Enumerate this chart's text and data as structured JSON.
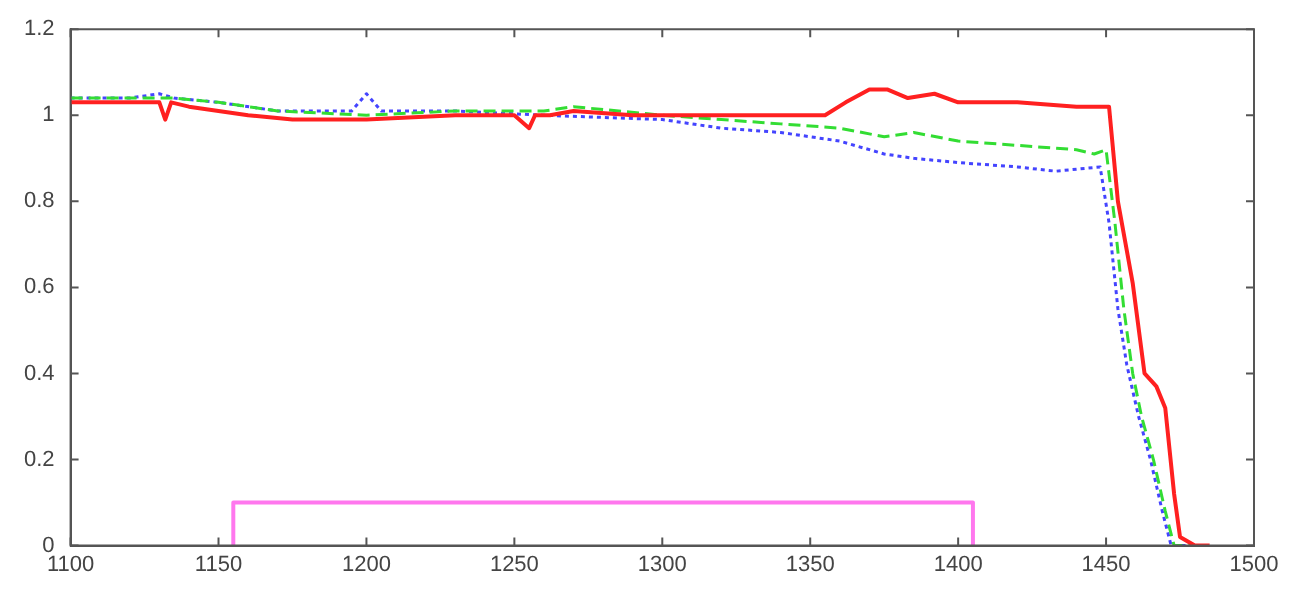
{
  "chart_data": {
    "type": "line",
    "xlim": [
      1100,
      1500
    ],
    "ylim": [
      0,
      1.2
    ],
    "xticks": [
      1100,
      1150,
      1200,
      1250,
      1300,
      1350,
      1400,
      1450,
      1500
    ],
    "yticks": [
      0,
      0.2,
      0.4,
      0.6,
      0.8,
      1,
      1.2
    ],
    "grid": false,
    "legend": false,
    "marker": "none",
    "series": [
      {
        "color": "#ff2020",
        "line_style": "solid",
        "x": [
          1100,
          1120,
          1130,
          1132,
          1134,
          1140,
          1150,
          1160,
          1175,
          1200,
          1230,
          1250,
          1255,
          1257,
          1262,
          1270,
          1290,
          1310,
          1340,
          1355,
          1362,
          1370,
          1376,
          1383,
          1392,
          1400,
          1420,
          1440,
          1451,
          1454,
          1459,
          1463,
          1467,
          1470,
          1473,
          1475,
          1480,
          1485
        ],
        "values": [
          1.03,
          1.03,
          1.03,
          0.99,
          1.03,
          1.02,
          1.01,
          1.0,
          0.99,
          0.99,
          1.0,
          1.0,
          0.97,
          1.0,
          1.0,
          1.01,
          1.0,
          1.0,
          1.0,
          1.0,
          1.03,
          1.06,
          1.06,
          1.04,
          1.05,
          1.03,
          1.03,
          1.02,
          1.02,
          0.8,
          0.61,
          0.4,
          0.37,
          0.32,
          0.12,
          0.02,
          0.0,
          0.0
        ]
      },
      {
        "color": "#33dd33",
        "line_style": "dashed",
        "x": [
          1100,
          1120,
          1135,
          1150,
          1170,
          1200,
          1230,
          1260,
          1270,
          1300,
          1320,
          1340,
          1360,
          1375,
          1385,
          1400,
          1420,
          1440,
          1446,
          1450,
          1453,
          1456,
          1459,
          1462,
          1466,
          1470,
          1473,
          1480
        ],
        "values": [
          1.04,
          1.04,
          1.04,
          1.03,
          1.01,
          1.0,
          1.01,
          1.01,
          1.02,
          1.0,
          0.99,
          0.98,
          0.97,
          0.95,
          0.96,
          0.94,
          0.93,
          0.92,
          0.91,
          0.92,
          0.75,
          0.55,
          0.4,
          0.3,
          0.2,
          0.08,
          0.0,
          0.0
        ]
      },
      {
        "color": "#4444ff",
        "line_style": "dotted",
        "x": [
          1100,
          1120,
          1130,
          1135,
          1150,
          1170,
          1195,
          1200,
          1205,
          1230,
          1260,
          1300,
          1320,
          1340,
          1360,
          1375,
          1385,
          1400,
          1420,
          1433,
          1448,
          1451,
          1454,
          1457,
          1461,
          1465,
          1469,
          1472,
          1480
        ],
        "values": [
          1.04,
          1.04,
          1.05,
          1.04,
          1.03,
          1.01,
          1.01,
          1.05,
          1.01,
          1.01,
          1.0,
          0.99,
          0.97,
          0.96,
          0.94,
          0.91,
          0.9,
          0.89,
          0.88,
          0.87,
          0.88,
          0.75,
          0.55,
          0.42,
          0.3,
          0.2,
          0.08,
          0.0,
          0.0
        ]
      },
      {
        "color": "#ff77ee",
        "line_style": "solid",
        "x": [
          1155,
          1155,
          1405,
          1405
        ],
        "values": [
          0,
          0.1,
          0.1,
          0
        ]
      }
    ]
  }
}
